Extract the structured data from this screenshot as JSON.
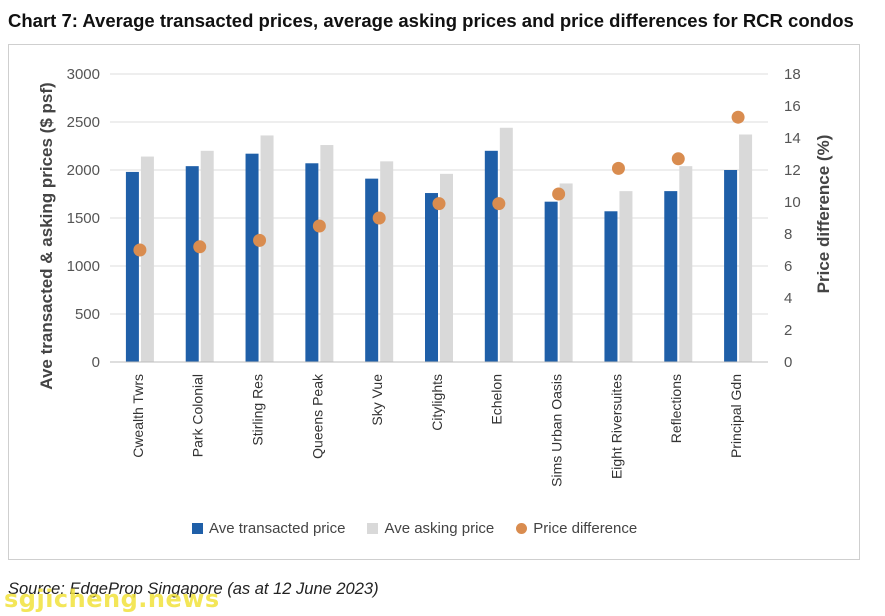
{
  "title": "Chart 7: Average transacted prices, average asking prices and price differences for RCR condos",
  "source": "Source: EdgeProp Singapore (as at 12 June 2023)",
  "watermark": "sgjicheng.news",
  "legend": {
    "transacted": "Ave transacted price",
    "asking": "Ave asking price",
    "difference": "Price difference"
  },
  "colors": {
    "transacted": "#1f5fa8",
    "asking": "#d9d9d9",
    "difference": "#d98c4f",
    "grid": "#dcdcdc"
  },
  "chart_data": {
    "type": "bar",
    "title": "Chart 7: Average transacted prices, average asking prices and price differences for RCR condos",
    "ylabel": "Ave transacted & asking prices ($ psf)",
    "y2label": "Price difference (%)",
    "ylim": [
      0,
      3000
    ],
    "y2lim": [
      0,
      18
    ],
    "yticks": [
      0,
      500,
      1000,
      1500,
      2000,
      2500,
      3000
    ],
    "y2ticks": [
      0,
      2,
      4,
      6,
      8,
      10,
      12,
      14,
      16,
      18
    ],
    "grid": true,
    "legend_position": "bottom",
    "categories": [
      "Cwealth Twrs",
      "Park Colonial",
      "Stirling Res",
      "Queens Peak",
      "Sky Vue",
      "Citylights",
      "Echelon",
      "Sims Urban Oasis",
      "Eight Riversuites",
      "Reflections",
      "Principal Gdn"
    ],
    "series": [
      {
        "name": "Ave transacted price",
        "type": "bar",
        "axis": "left",
        "values": [
          1980,
          2040,
          2170,
          2070,
          1910,
          1760,
          2200,
          1670,
          1570,
          1780,
          2000
        ]
      },
      {
        "name": "Ave asking price",
        "type": "bar",
        "axis": "left",
        "values": [
          2140,
          2200,
          2360,
          2260,
          2090,
          1960,
          2440,
          1860,
          1780,
          2040,
          2370
        ]
      },
      {
        "name": "Price difference",
        "type": "scatter",
        "axis": "right",
        "values": [
          7.0,
          7.2,
          7.6,
          8.5,
          9.0,
          9.9,
          9.9,
          10.5,
          12.1,
          12.7,
          15.3
        ]
      }
    ]
  }
}
